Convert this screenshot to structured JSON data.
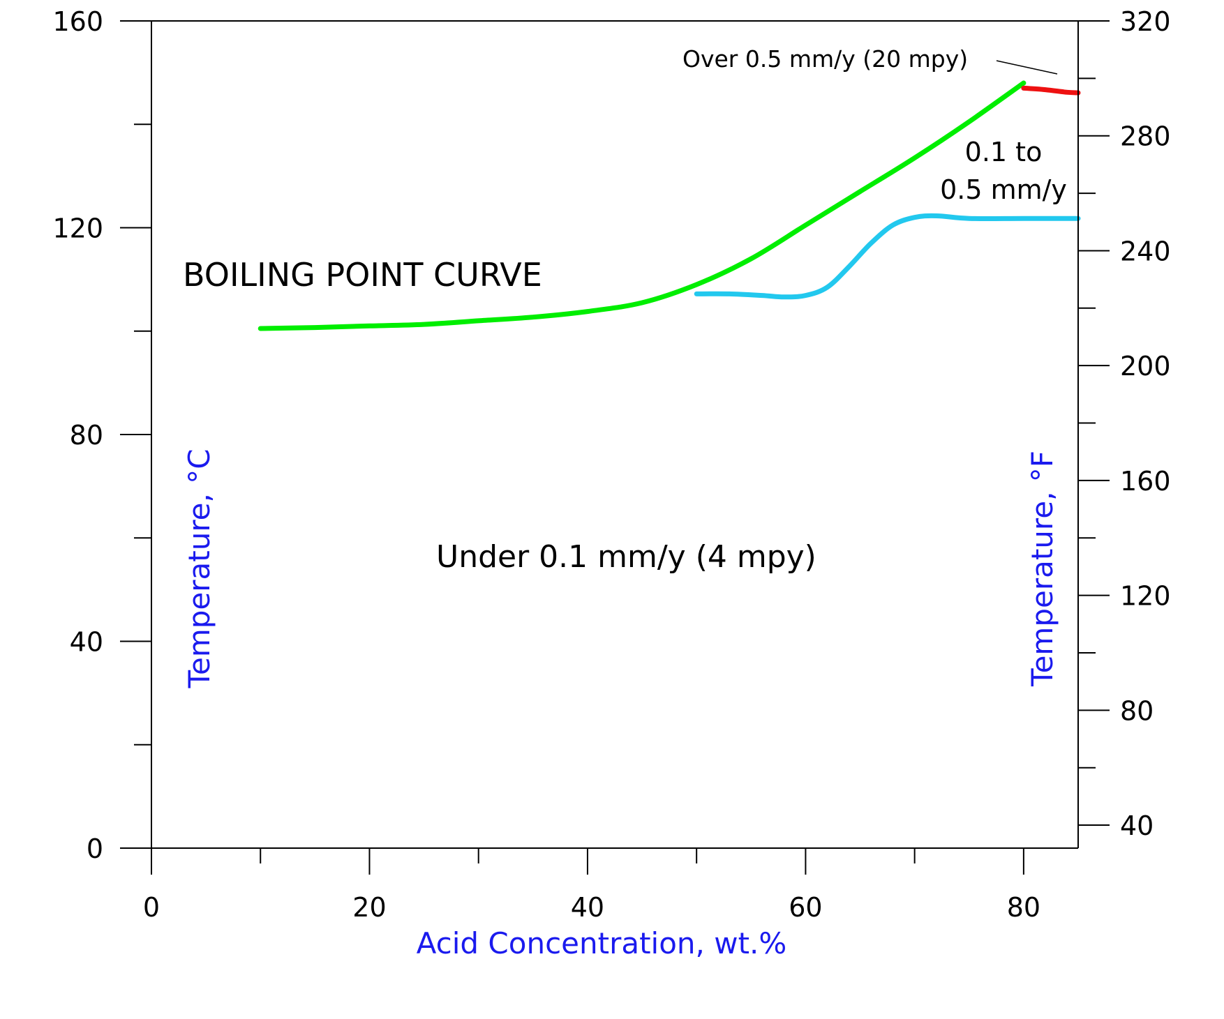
{
  "chart_data": {
    "type": "line",
    "xlabel": "Acid Concentration, wt.%",
    "ylabel": "Temperature, °C",
    "y2label": "Temperature, °F",
    "xlim": [
      0,
      85
    ],
    "ylim": [
      0,
      160
    ],
    "y2lim": [
      32,
      320
    ],
    "x_ticks": [
      0,
      20,
      40,
      60,
      80
    ],
    "y_ticks": [
      0,
      40,
      80,
      120,
      160
    ],
    "y2_ticks": [
      40,
      80,
      120,
      160,
      200,
      240,
      280,
      320
    ],
    "grid": false,
    "legend": "none",
    "series": [
      {
        "name": "BOILING POINT CURVE",
        "color": "#00ee00",
        "points": [
          [
            10,
            100.5
          ],
          [
            15,
            100.7
          ],
          [
            20,
            101.0
          ],
          [
            25,
            101.3
          ],
          [
            30,
            102.0
          ],
          [
            35,
            102.7
          ],
          [
            40,
            103.8
          ],
          [
            45,
            105.5
          ],
          [
            50,
            109.0
          ],
          [
            55,
            114.0
          ],
          [
            60,
            120.5
          ],
          [
            65,
            127.0
          ],
          [
            70,
            133.5
          ],
          [
            75,
            140.5
          ],
          [
            80,
            148.0
          ]
        ]
      },
      {
        "color": "#22c8ee",
        "points": [
          [
            50,
            107.2
          ],
          [
            53,
            107.2
          ],
          [
            56,
            106.9
          ],
          [
            58,
            106.6
          ],
          [
            60,
            106.9
          ],
          [
            62,
            108.5
          ],
          [
            64,
            112.5
          ],
          [
            66,
            117.0
          ],
          [
            68,
            120.5
          ],
          [
            70,
            122.0
          ],
          [
            72,
            122.3
          ],
          [
            75,
            121.8
          ],
          [
            80,
            121.8
          ],
          [
            85,
            121.8
          ]
        ]
      },
      {
        "color": "#ee1111",
        "points": [
          [
            80,
            147.0
          ],
          [
            82,
            146.7
          ],
          [
            84,
            146.2
          ],
          [
            85,
            146.1
          ]
        ]
      }
    ],
    "annotations": [
      {
        "text": "BOILING POINT CURVE",
        "color": "#00ee00"
      },
      {
        "text": "Over 0.5 mm/y (20 mpy)",
        "color": "#000000"
      },
      {
        "text_lines": [
          "0.1 to",
          "0.5 mm/y"
        ],
        "color": "#000000"
      },
      {
        "text": "Under 0.1 mm/y (4 mpy)",
        "color": "#000000"
      }
    ]
  }
}
